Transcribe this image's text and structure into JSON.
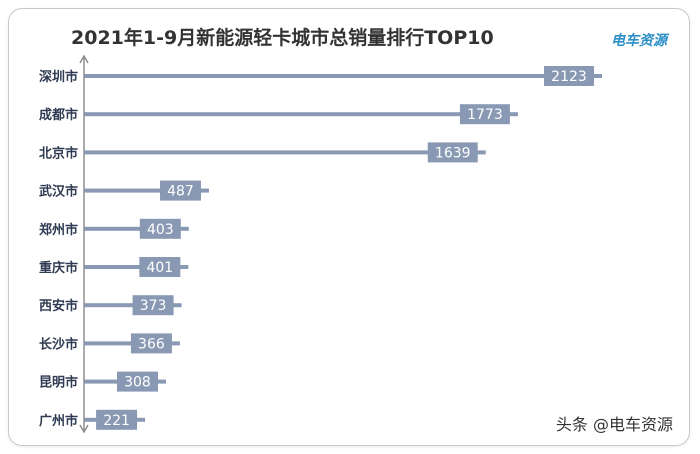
{
  "header": {
    "title": "2021年1-9月新能源轻卡城市总销量排行TOP10",
    "brand": "电车资源"
  },
  "footer": {
    "watermark": "头条 @电车资源"
  },
  "colors": {
    "bar": "#8a99b3",
    "label_box": "#8a99b3",
    "label_text": "#ffffff",
    "axis": "#8f8f8f",
    "category_text": "#2f3b52",
    "title": "#333333",
    "brand": "#2d8fc7"
  },
  "chart_data": {
    "type": "bar",
    "orientation": "horizontal",
    "title": "2021年1-9月新能源轻卡城市总销量排行TOP10",
    "categories": [
      "深圳市",
      "成都市",
      "北京市",
      "武汉市",
      "郑州市",
      "重庆市",
      "西安市",
      "长沙市",
      "昆明市",
      "广州市"
    ],
    "values": [
      2123,
      1773,
      1639,
      487,
      403,
      401,
      373,
      366,
      308,
      221
    ],
    "data_labels": true,
    "grid": false,
    "legend": "none"
  }
}
